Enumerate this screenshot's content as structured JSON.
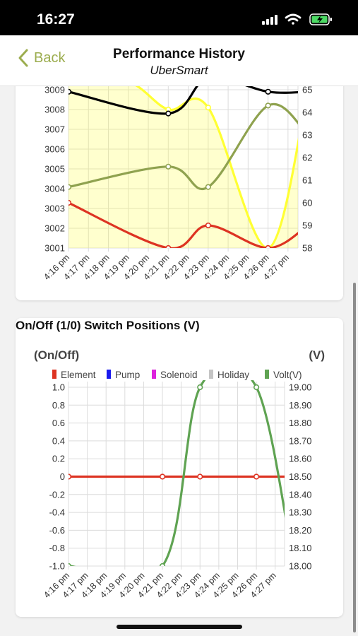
{
  "status_bar": {
    "time": "16:27"
  },
  "nav": {
    "back_label": "Back",
    "title": "Performance History",
    "subtitle": "UberSmart"
  },
  "switch_section": {
    "title": "On/Off (1/0) Switch Positions (V)"
  },
  "chart_data": [
    {
      "type": "line",
      "x": [
        "4:16 pm",
        "4:17 pm",
        "4:18 pm",
        "4:19 pm",
        "4:20 pm",
        "4:21 pm",
        "4:22 pm",
        "4:23 pm",
        "4:24 pm",
        "4:25 pm",
        "4:26 pm",
        "4:27 pm"
      ],
      "yleft_ticks": [
        "3001",
        "3002",
        "3003",
        "3004",
        "3005",
        "3006",
        "3007",
        "3008",
        "3009"
      ],
      "yright_ticks": [
        "58",
        "59",
        "60",
        "61",
        "62",
        "63",
        "64",
        "65"
      ],
      "ylim_left": [
        3001,
        3009
      ],
      "ylim_right": [
        58,
        65
      ],
      "grid": true,
      "series": [
        {
          "axis": "left",
          "color": "#ffff33",
          "fill": true,
          "points": [
            [
              0,
              3009.6
            ],
            [
              3,
              3009.4
            ],
            [
              5,
              3008.0
            ],
            [
              7,
              3008.1
            ],
            [
              10,
              3001.0
            ],
            [
              12,
              3009.0
            ]
          ]
        },
        {
          "axis": "left",
          "color": "#000000",
          "points": [
            [
              0,
              3008.9
            ],
            [
              5,
              3007.8
            ],
            [
              7,
              3009.6
            ],
            [
              10,
              3008.9
            ],
            [
              12,
              3008.9
            ]
          ]
        },
        {
          "axis": "right",
          "color": "#8fa24f",
          "points": [
            [
              0,
              60.7
            ],
            [
              5,
              61.6
            ],
            [
              7,
              60.7
            ],
            [
              10,
              64.3
            ],
            [
              12,
              63.0
            ]
          ]
        },
        {
          "axis": "right",
          "color": "#dd3322",
          "points": [
            [
              0,
              60.0
            ],
            [
              5,
              58.0
            ],
            [
              7,
              59.0
            ],
            [
              10,
              58.0
            ],
            [
              12,
              59.0
            ]
          ]
        }
      ]
    },
    {
      "type": "line",
      "ylabel_left": "(On/Off)",
      "ylabel_right": "(V)",
      "x": [
        "4:16 pm",
        "4:17 pm",
        "4:18 pm",
        "4:19 pm",
        "4:20 pm",
        "4:21 pm",
        "4:22 pm",
        "4:23 pm",
        "4:24 pm",
        "4:25 pm",
        "4:26 pm",
        "4:27 pm"
      ],
      "yleft_ticks": [
        "-1.0",
        "-0.8",
        "-0.6",
        "-0.4",
        "-0.2",
        "0",
        "0.2",
        "0.4",
        "0.6",
        "0.8",
        "1.0"
      ],
      "yright_ticks": [
        "18.00",
        "18.10",
        "18.20",
        "18.30",
        "18.40",
        "18.50",
        "18.60",
        "18.70",
        "18.80",
        "18.90",
        "19.00"
      ],
      "ylim_left": [
        -1,
        1
      ],
      "ylim_right": [
        18,
        19
      ],
      "grid": true,
      "legend_position": "top",
      "legend": [
        {
          "name": "Element",
          "color": "#dd3322"
        },
        {
          "name": "Pump",
          "color": "#1a1aee"
        },
        {
          "name": "Solenoid",
          "color": "#dd22dd"
        },
        {
          "name": "Holiday",
          "color": "#c4c4c4"
        },
        {
          "name": "Volt(V)",
          "color": "#5fa352"
        }
      ],
      "series": [
        {
          "name": "Element",
          "axis": "left",
          "color": "#dd3322",
          "points": [
            [
              0,
              0
            ],
            [
              5,
              0
            ],
            [
              7,
              0
            ],
            [
              10,
              0
            ],
            [
              12,
              0
            ]
          ]
        },
        {
          "name": "Volt(V)",
          "axis": "right",
          "color": "#5fa352",
          "points": [
            [
              0,
              18.0
            ],
            [
              5,
              18.0
            ],
            [
              7,
              19.0
            ],
            [
              10,
              19.0
            ],
            [
              12,
              18.0
            ]
          ]
        }
      ]
    }
  ]
}
